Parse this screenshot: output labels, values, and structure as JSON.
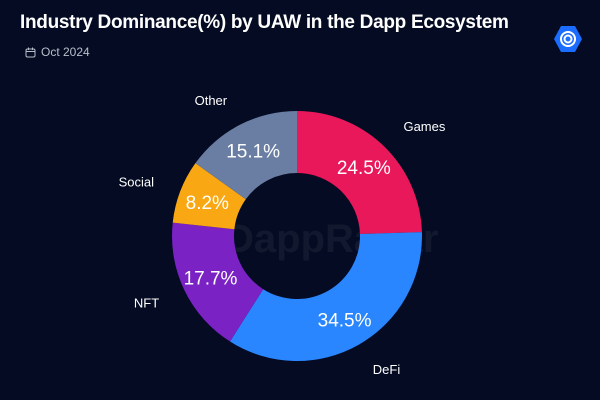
{
  "header": {
    "title": "Industry Dominance(%) by UAW in the Dapp Ecosystem",
    "date": "Oct 2024",
    "date_icon": "calendar-icon",
    "logo_icon": "dappradar-logo-icon"
  },
  "watermark": "DappRadar",
  "chart_data": {
    "type": "pie",
    "donut": true,
    "title": "Industry Dominance(%) by UAW in the Dapp Ecosystem",
    "slices": [
      {
        "label": "Games",
        "value": 24.5,
        "display": "24.5%",
        "color": "#e8185a"
      },
      {
        "label": "DeFi",
        "value": 34.5,
        "display": "34.5%",
        "color": "#2a86ff"
      },
      {
        "label": "NFT",
        "value": 17.7,
        "display": "17.7%",
        "color": "#7a22c4"
      },
      {
        "label": "Social",
        "value": 8.2,
        "display": "8.2%",
        "color": "#f9a712"
      },
      {
        "label": "Other",
        "value": 15.1,
        "display": "15.1%",
        "color": "#6a7ea3"
      }
    ]
  }
}
